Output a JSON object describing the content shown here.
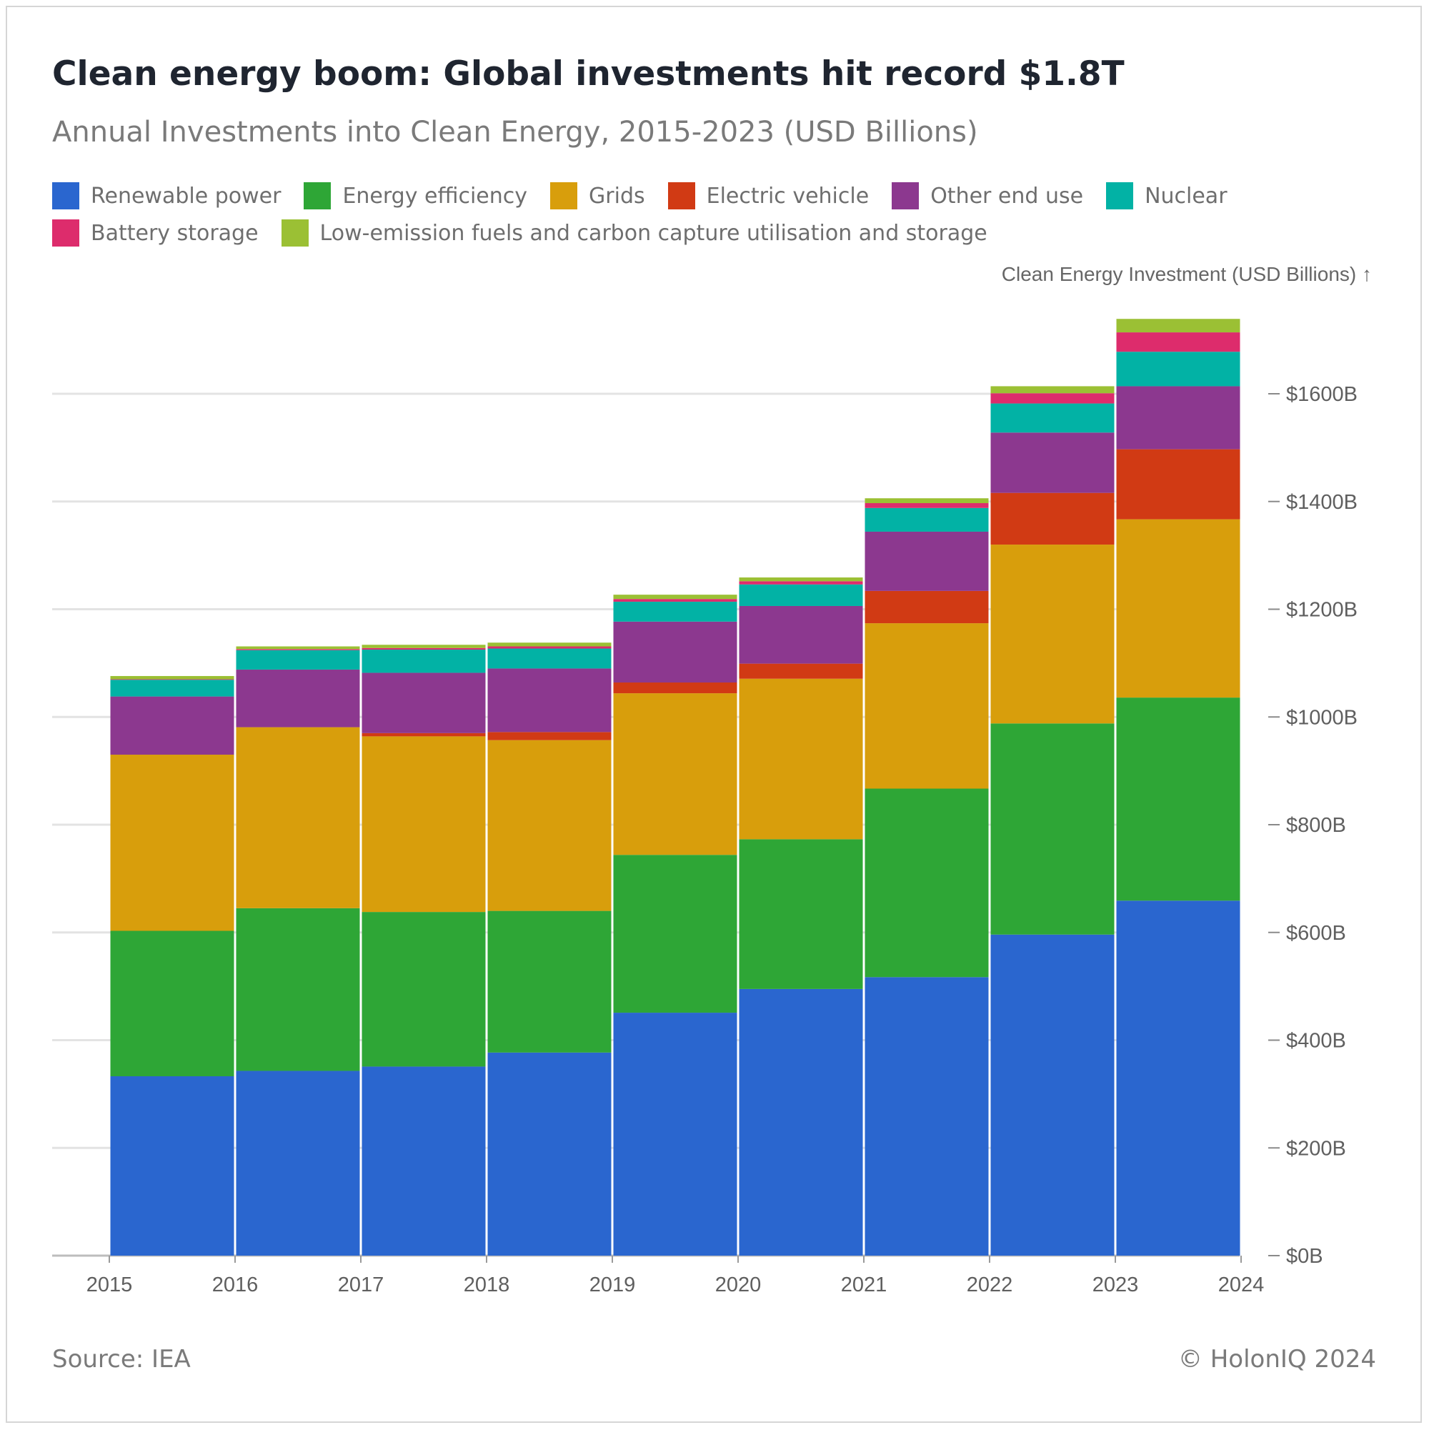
{
  "header": {
    "title": "Clean energy boom: Global investments hit record $1.8T",
    "subtitle": "Annual Investments into Clean Energy, 2015-2023 (USD Billions)"
  },
  "legend": [
    {
      "label": "Renewable power",
      "color": "#2a66cf"
    },
    {
      "label": "Energy efficiency",
      "color": "#2ea636"
    },
    {
      "label": "Grids",
      "color": "#d89e0c"
    },
    {
      "label": "Electric vehicle",
      "color": "#d13a14"
    },
    {
      "label": "Other end use",
      "color": "#8c388f"
    },
    {
      "label": "Nuclear",
      "color": "#02b2a5"
    },
    {
      "label": "Battery storage",
      "color": "#dd2c6c"
    },
    {
      "label": "Low-emission fuels and carbon capture utilisation and storage",
      "color": "#9bc034"
    }
  ],
  "footer": {
    "source": "Source: IEA",
    "credit": "© HolonIQ 2024"
  },
  "chart_data": {
    "type": "bar",
    "stacked": true,
    "ylabel": "Clean Energy Investment (USD Billions) ↑",
    "ylim": [
      0,
      1800
    ],
    "yticks": [
      0,
      200,
      400,
      600,
      800,
      1000,
      1200,
      1400,
      1600
    ],
    "ytick_labels": [
      "$0B",
      "$200B",
      "$400B",
      "$600B",
      "$800B",
      "$1000B",
      "$1200B",
      "$1400B",
      "$1600B"
    ],
    "xticks": [
      "2015",
      "2016",
      "2017",
      "2018",
      "2019",
      "2020",
      "2021",
      "2022",
      "2023",
      "2024"
    ],
    "categories": [
      "2015",
      "2016",
      "2017",
      "2018",
      "2019",
      "2020",
      "2021",
      "2022",
      "2023"
    ],
    "grid": true,
    "legend_position": "top",
    "series": [
      {
        "name": "Renewable power",
        "values": [
          333,
          343,
          351,
          377,
          451,
          495,
          517,
          596,
          659
        ]
      },
      {
        "name": "Energy efficiency",
        "values": [
          270,
          302,
          287,
          263,
          293,
          278,
          350,
          392,
          377
        ]
      },
      {
        "name": "Grids",
        "values": [
          327,
          336,
          326,
          317,
          300,
          298,
          307,
          332,
          331
        ]
      },
      {
        "name": "Electric vehicle",
        "values": [
          0,
          0,
          6,
          15,
          20,
          28,
          60,
          96,
          130
        ]
      },
      {
        "name": "Other end use",
        "values": [
          108,
          107,
          112,
          118,
          113,
          107,
          110,
          112,
          117
        ]
      },
      {
        "name": "Nuclear",
        "values": [
          31,
          36,
          43,
          37,
          37,
          40,
          44,
          54,
          64
        ]
      },
      {
        "name": "Battery storage",
        "values": [
          1,
          2,
          3,
          4,
          5,
          6,
          9,
          19,
          36
        ]
      },
      {
        "name": "Low-emission fuels and carbon capture utilisation and storage",
        "values": [
          6,
          5,
          6,
          7,
          8,
          7,
          9,
          13,
          25
        ]
      }
    ]
  }
}
